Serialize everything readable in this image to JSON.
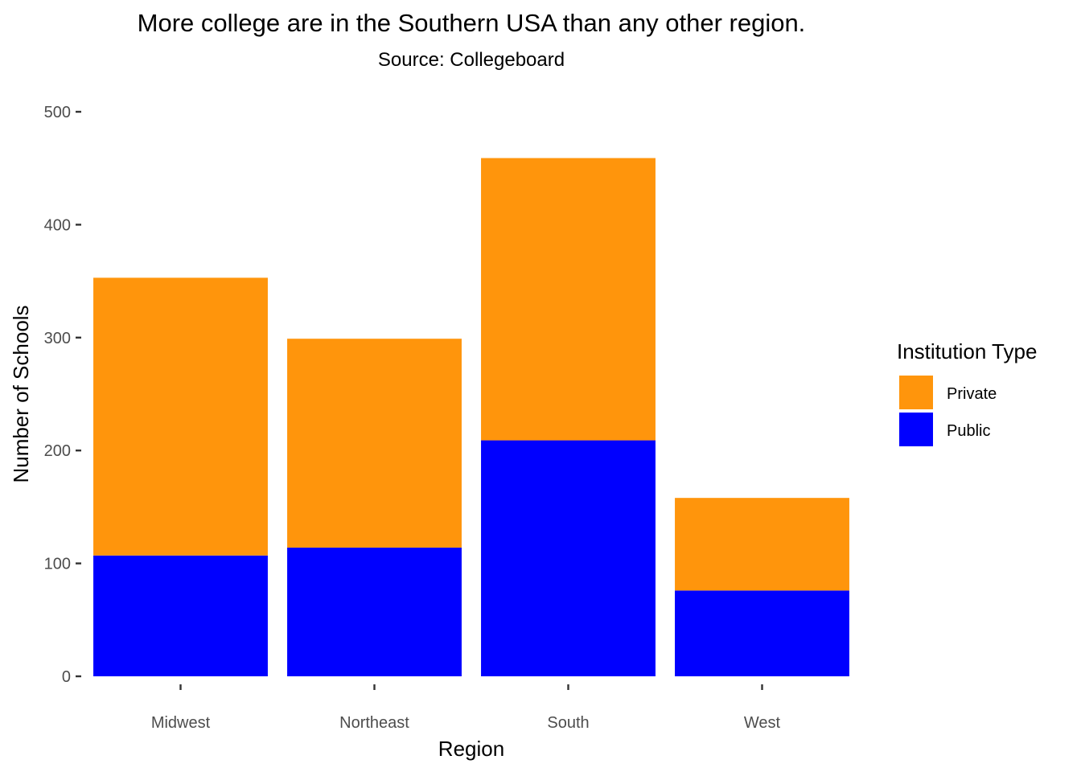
{
  "chart_data": {
    "type": "bar",
    "stacked": true,
    "title": "More college are in the Southern USA than any other region.",
    "subtitle": "Source: Collegeboard",
    "xlabel": "Region",
    "ylabel": "Number of Schools",
    "categories": [
      "Midwest",
      "Northeast",
      "South",
      "West"
    ],
    "series": [
      {
        "name": "Public",
        "color": "#0000ff",
        "values": [
          107,
          114,
          209,
          76
        ]
      },
      {
        "name": "Private",
        "color": "#ff950c",
        "values": [
          246,
          185,
          250,
          82
        ]
      }
    ],
    "ylim": [
      0,
      500
    ],
    "yticks": [
      0,
      100,
      200,
      300,
      400,
      500
    ],
    "grid": false,
    "legend": {
      "title": "Institution Type",
      "placement": "right",
      "entries": [
        {
          "label": "Private",
          "color": "#ff950c"
        },
        {
          "label": "Public",
          "color": "#0000ff"
        }
      ]
    }
  }
}
